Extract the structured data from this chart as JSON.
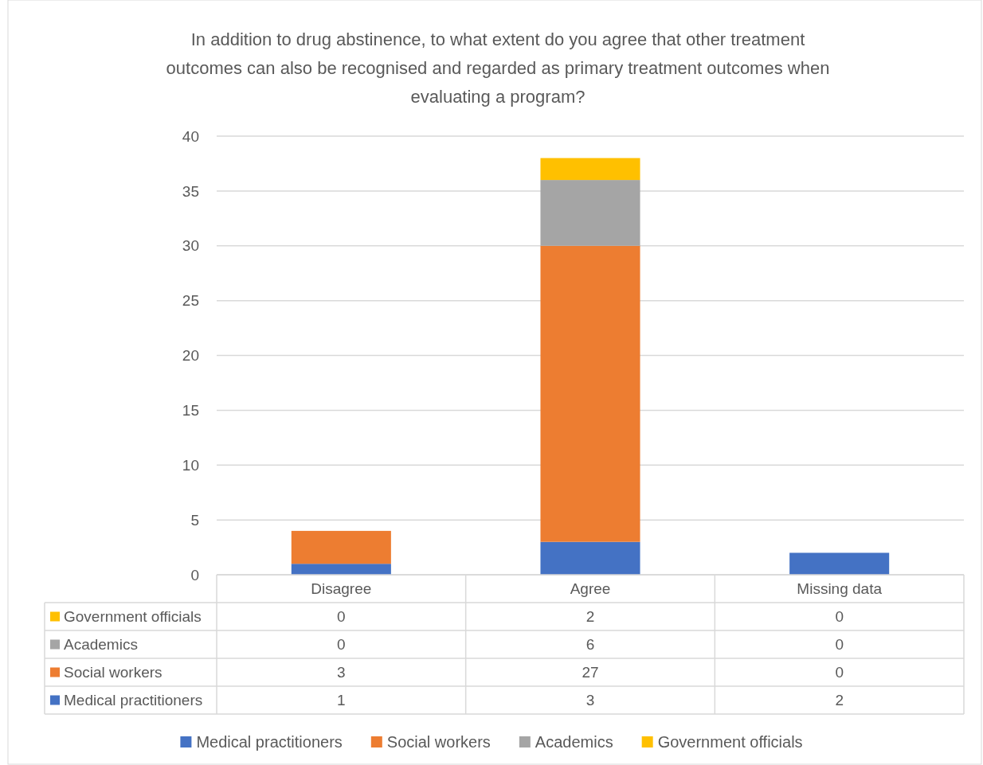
{
  "chart_data": {
    "type": "bar",
    "stacked": true,
    "title": "In addition to drug abstinence, to what extent do you agree that other treatment outcomes can also be recognised and regarded as primary treatment outcomes when evaluating a program?",
    "categories": [
      "Disagree",
      "Agree",
      "Missing data"
    ],
    "series": [
      {
        "name": "Medical practitioners",
        "color": "#4472c4",
        "values": [
          1,
          3,
          2
        ]
      },
      {
        "name": "Social workers",
        "color": "#ed7d31",
        "values": [
          3,
          27,
          0
        ]
      },
      {
        "name": "Academics",
        "color": "#a5a5a5",
        "values": [
          0,
          6,
          0
        ]
      },
      {
        "name": "Government officials",
        "color": "#ffc000",
        "values": [
          0,
          2,
          0
        ]
      }
    ],
    "ylim": [
      0,
      40
    ],
    "yticks": [
      0,
      5,
      10,
      15,
      20,
      25,
      30,
      35,
      40
    ],
    "grid": "y",
    "legend": "bottom",
    "data_labels": true
  }
}
